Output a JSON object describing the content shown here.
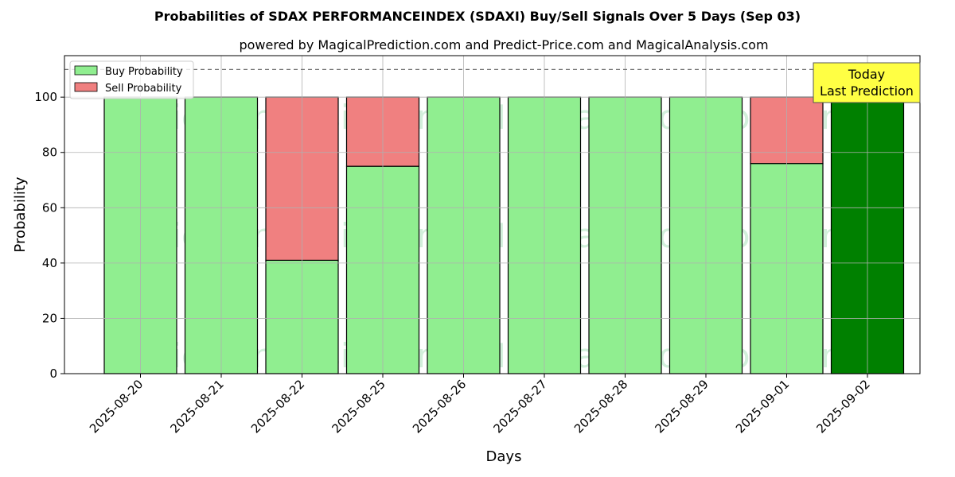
{
  "chart_data": {
    "type": "bar",
    "title": "Probabilities of SDAX PERFORMANCEINDEX (SDAXI) Buy/Sell Signals Over 5 Days (Sep 03)",
    "subtitle": "powered by MagicalPrediction.com and Predict-Price.com and MagicalAnalysis.com",
    "xlabel": "Days",
    "ylabel": "Probability",
    "ylim": [
      0,
      115
    ],
    "yticks": [
      0,
      20,
      40,
      60,
      80,
      100
    ],
    "threshold_line": 110,
    "grid": true,
    "legend_position": "top-left",
    "categories": [
      "2025-08-20",
      "2025-08-21",
      "2025-08-22",
      "2025-08-25",
      "2025-08-26",
      "2025-08-27",
      "2025-08-28",
      "2025-08-29",
      "2025-09-01",
      "2025-09-02"
    ],
    "series": [
      {
        "name": "Buy Probability",
        "color": "#90ee90",
        "values": [
          100,
          100,
          41,
          75,
          100,
          100,
          100,
          100,
          76,
          100
        ]
      },
      {
        "name": "Sell Probability",
        "color": "#f08080",
        "values": [
          0,
          0,
          59,
          25,
          0,
          0,
          0,
          0,
          24,
          0
        ]
      }
    ],
    "highlight": {
      "index": 9,
      "color": "#008000"
    },
    "annotation": {
      "line1": "Today",
      "line2": "Last Prediction",
      "background": "#ffff44"
    },
    "watermarks": [
      "MagicalAnalysis.com",
      "MagicalPrediction.com"
    ]
  }
}
